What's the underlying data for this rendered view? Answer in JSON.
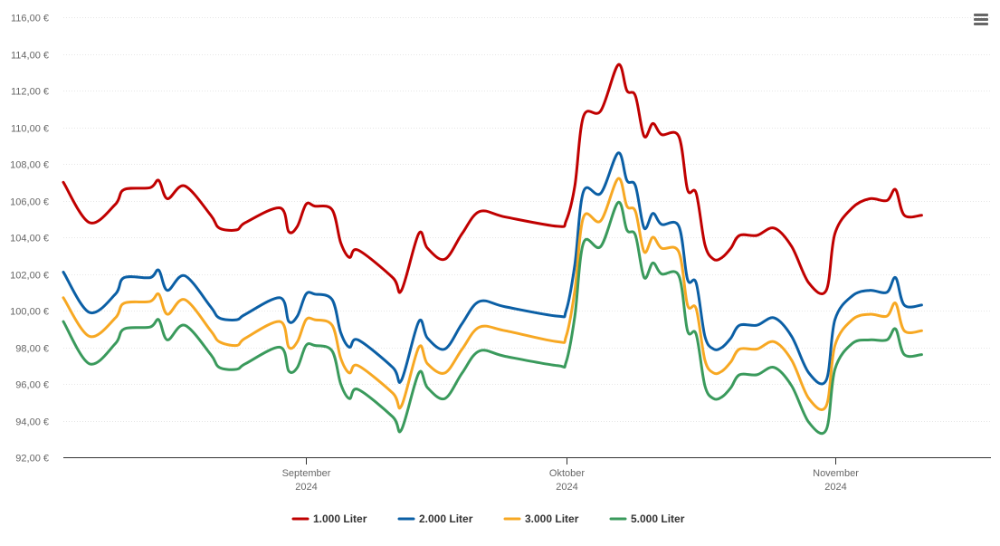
{
  "menu": {
    "icon": "hamburger-menu-icon"
  },
  "chart_data": {
    "type": "line",
    "title": "",
    "xlabel": "",
    "ylabel": "",
    "ylim": [
      92,
      116
    ],
    "ytick_labels": [
      "92,00 €",
      "94,00 €",
      "96,00 €",
      "98,00 €",
      "100,00 €",
      "102,00 €",
      "104,00 €",
      "106,00 €",
      "108,00 €",
      "110,00 €",
      "112,00 €",
      "114,00 €",
      "116,00 €"
    ],
    "xlim": [
      "2024-08-04",
      "2024-11-19"
    ],
    "xticks": [
      {
        "date": "2024-09-01",
        "label": "September",
        "year": "2024"
      },
      {
        "date": "2024-10-01",
        "label": "Oktober",
        "year": "2024"
      },
      {
        "date": "2024-11-01",
        "label": "November",
        "year": "2024"
      }
    ],
    "grid": "horizontal",
    "legend": "bottom-center",
    "series": [
      {
        "name": "1.000 Liter",
        "color": "#c00000",
        "points": [
          [
            "2024-08-04",
            107.0
          ],
          [
            "2024-08-07",
            104.8
          ],
          [
            "2024-08-10",
            105.8
          ],
          [
            "2024-08-11",
            106.6
          ],
          [
            "2024-08-14",
            106.7
          ],
          [
            "2024-08-15",
            107.1
          ],
          [
            "2024-08-16",
            106.1
          ],
          [
            "2024-08-18",
            106.8
          ],
          [
            "2024-08-21",
            105.2
          ],
          [
            "2024-08-22",
            104.5
          ],
          [
            "2024-08-24",
            104.4
          ],
          [
            "2024-08-25",
            104.8
          ],
          [
            "2024-08-29",
            105.6
          ],
          [
            "2024-08-30",
            104.3
          ],
          [
            "2024-08-31",
            104.6
          ],
          [
            "2024-09-01",
            105.8
          ],
          [
            "2024-09-02",
            105.7
          ],
          [
            "2024-09-04",
            105.5
          ],
          [
            "2024-09-05",
            103.7
          ],
          [
            "2024-09-06",
            102.9
          ],
          [
            "2024-09-07",
            103.3
          ],
          [
            "2024-09-11",
            101.8
          ],
          [
            "2024-09-12",
            101.1
          ],
          [
            "2024-09-14",
            104.2
          ],
          [
            "2024-09-15",
            103.4
          ],
          [
            "2024-09-17",
            102.8
          ],
          [
            "2024-09-19",
            104.2
          ],
          [
            "2024-09-21",
            105.4
          ],
          [
            "2024-09-24",
            105.1
          ],
          [
            "2024-09-30",
            104.6
          ],
          [
            "2024-10-01",
            104.9
          ],
          [
            "2024-10-02",
            106.8
          ],
          [
            "2024-10-03",
            110.6
          ],
          [
            "2024-10-05",
            110.9
          ],
          [
            "2024-10-07",
            113.4
          ],
          [
            "2024-10-08",
            112.0
          ],
          [
            "2024-10-09",
            111.7
          ],
          [
            "2024-10-10",
            109.5
          ],
          [
            "2024-10-11",
            110.2
          ],
          [
            "2024-10-12",
            109.6
          ],
          [
            "2024-10-14",
            109.5
          ],
          [
            "2024-10-15",
            106.6
          ],
          [
            "2024-10-16",
            106.4
          ],
          [
            "2024-10-17",
            103.6
          ],
          [
            "2024-10-18",
            102.8
          ],
          [
            "2024-10-19",
            102.9
          ],
          [
            "2024-10-20",
            103.4
          ],
          [
            "2024-10-21",
            104.1
          ],
          [
            "2024-10-23",
            104.1
          ],
          [
            "2024-10-25",
            104.5
          ],
          [
            "2024-10-27",
            103.5
          ],
          [
            "2024-10-29",
            101.5
          ],
          [
            "2024-10-31",
            101.1
          ],
          [
            "2024-11-01",
            104.2
          ],
          [
            "2024-11-03",
            105.6
          ],
          [
            "2024-11-05",
            106.1
          ],
          [
            "2024-11-07",
            106.0
          ],
          [
            "2024-11-08",
            106.6
          ],
          [
            "2024-11-09",
            105.2
          ],
          [
            "2024-11-11",
            105.2
          ]
        ]
      },
      {
        "name": "2.000 Liter",
        "color": "#0b5fa5",
        "points": [
          [
            "2024-08-04",
            102.1
          ],
          [
            "2024-08-07",
            99.9
          ],
          [
            "2024-08-10",
            100.9
          ],
          [
            "2024-08-11",
            101.8
          ],
          [
            "2024-08-14",
            101.8
          ],
          [
            "2024-08-15",
            102.2
          ],
          [
            "2024-08-16",
            101.1
          ],
          [
            "2024-08-18",
            101.9
          ],
          [
            "2024-08-21",
            100.2
          ],
          [
            "2024-08-22",
            99.6
          ],
          [
            "2024-08-24",
            99.5
          ],
          [
            "2024-08-25",
            99.8
          ],
          [
            "2024-08-29",
            100.7
          ],
          [
            "2024-08-30",
            99.4
          ],
          [
            "2024-08-31",
            99.7
          ],
          [
            "2024-09-01",
            100.9
          ],
          [
            "2024-09-02",
            100.9
          ],
          [
            "2024-09-04",
            100.6
          ],
          [
            "2024-09-05",
            98.8
          ],
          [
            "2024-09-06",
            98.0
          ],
          [
            "2024-09-07",
            98.4
          ],
          [
            "2024-09-11",
            96.9
          ],
          [
            "2024-09-12",
            96.2
          ],
          [
            "2024-09-14",
            99.4
          ],
          [
            "2024-09-15",
            98.5
          ],
          [
            "2024-09-17",
            97.9
          ],
          [
            "2024-09-19",
            99.3
          ],
          [
            "2024-09-21",
            100.5
          ],
          [
            "2024-09-24",
            100.2
          ],
          [
            "2024-09-30",
            99.7
          ],
          [
            "2024-10-01",
            100.0
          ],
          [
            "2024-10-02",
            102.5
          ],
          [
            "2024-10-03",
            106.5
          ],
          [
            "2024-10-05",
            106.4
          ],
          [
            "2024-10-07",
            108.6
          ],
          [
            "2024-10-08",
            107.1
          ],
          [
            "2024-10-09",
            106.8
          ],
          [
            "2024-10-10",
            104.5
          ],
          [
            "2024-10-11",
            105.3
          ],
          [
            "2024-10-12",
            104.7
          ],
          [
            "2024-10-14",
            104.6
          ],
          [
            "2024-10-15",
            101.7
          ],
          [
            "2024-10-16",
            101.5
          ],
          [
            "2024-10-17",
            98.6
          ],
          [
            "2024-10-18",
            97.9
          ],
          [
            "2024-10-19",
            98.0
          ],
          [
            "2024-10-20",
            98.5
          ],
          [
            "2024-10-21",
            99.2
          ],
          [
            "2024-10-23",
            99.2
          ],
          [
            "2024-10-25",
            99.6
          ],
          [
            "2024-10-27",
            98.6
          ],
          [
            "2024-10-29",
            96.6
          ],
          [
            "2024-10-31",
            96.2
          ],
          [
            "2024-11-01",
            99.5
          ],
          [
            "2024-11-03",
            100.8
          ],
          [
            "2024-11-05",
            101.1
          ],
          [
            "2024-11-07",
            101.0
          ],
          [
            "2024-11-08",
            101.8
          ],
          [
            "2024-11-09",
            100.3
          ],
          [
            "2024-11-11",
            100.3
          ]
        ]
      },
      {
        "name": "3.000 Liter",
        "color": "#f7a823",
        "points": [
          [
            "2024-08-04",
            100.7
          ],
          [
            "2024-08-07",
            98.6
          ],
          [
            "2024-08-10",
            99.6
          ],
          [
            "2024-08-11",
            100.4
          ],
          [
            "2024-08-14",
            100.5
          ],
          [
            "2024-08-15",
            100.9
          ],
          [
            "2024-08-16",
            99.8
          ],
          [
            "2024-08-18",
            100.6
          ],
          [
            "2024-08-21",
            98.9
          ],
          [
            "2024-08-22",
            98.3
          ],
          [
            "2024-08-24",
            98.1
          ],
          [
            "2024-08-25",
            98.5
          ],
          [
            "2024-08-29",
            99.4
          ],
          [
            "2024-08-30",
            98.0
          ],
          [
            "2024-08-31",
            98.3
          ],
          [
            "2024-09-01",
            99.5
          ],
          [
            "2024-09-02",
            99.5
          ],
          [
            "2024-09-04",
            99.2
          ],
          [
            "2024-09-05",
            97.4
          ],
          [
            "2024-09-06",
            96.6
          ],
          [
            "2024-09-07",
            97.0
          ],
          [
            "2024-09-11",
            95.5
          ],
          [
            "2024-09-12",
            94.8
          ],
          [
            "2024-09-14",
            98.0
          ],
          [
            "2024-09-15",
            97.1
          ],
          [
            "2024-09-17",
            96.6
          ],
          [
            "2024-09-19",
            97.9
          ],
          [
            "2024-09-21",
            99.1
          ],
          [
            "2024-09-24",
            98.9
          ],
          [
            "2024-09-30",
            98.3
          ],
          [
            "2024-10-01",
            98.6
          ],
          [
            "2024-10-02",
            101.1
          ],
          [
            "2024-10-03",
            105.1
          ],
          [
            "2024-10-05",
            104.9
          ],
          [
            "2024-10-07",
            107.2
          ],
          [
            "2024-10-08",
            105.7
          ],
          [
            "2024-10-09",
            105.4
          ],
          [
            "2024-10-10",
            103.2
          ],
          [
            "2024-10-11",
            104.0
          ],
          [
            "2024-10-12",
            103.4
          ],
          [
            "2024-10-14",
            103.2
          ],
          [
            "2024-10-15",
            100.3
          ],
          [
            "2024-10-16",
            100.1
          ],
          [
            "2024-10-17",
            97.3
          ],
          [
            "2024-10-18",
            96.6
          ],
          [
            "2024-10-19",
            96.7
          ],
          [
            "2024-10-20",
            97.2
          ],
          [
            "2024-10-21",
            97.9
          ],
          [
            "2024-10-23",
            97.9
          ],
          [
            "2024-10-25",
            98.3
          ],
          [
            "2024-10-27",
            97.3
          ],
          [
            "2024-10-29",
            95.2
          ],
          [
            "2024-10-31",
            94.8
          ],
          [
            "2024-11-01",
            98.1
          ],
          [
            "2024-11-03",
            99.5
          ],
          [
            "2024-11-05",
            99.8
          ],
          [
            "2024-11-07",
            99.7
          ],
          [
            "2024-11-08",
            100.4
          ],
          [
            "2024-11-09",
            98.9
          ],
          [
            "2024-11-11",
            98.9
          ]
        ]
      },
      {
        "name": "5.000 Liter",
        "color": "#3a9a5c",
        "points": [
          [
            "2024-08-04",
            99.4
          ],
          [
            "2024-08-07",
            97.1
          ],
          [
            "2024-08-10",
            98.2
          ],
          [
            "2024-08-11",
            99.0
          ],
          [
            "2024-08-14",
            99.1
          ],
          [
            "2024-08-15",
            99.5
          ],
          [
            "2024-08-16",
            98.4
          ],
          [
            "2024-08-18",
            99.2
          ],
          [
            "2024-08-21",
            97.6
          ],
          [
            "2024-08-22",
            96.9
          ],
          [
            "2024-08-24",
            96.8
          ],
          [
            "2024-08-25",
            97.1
          ],
          [
            "2024-08-29",
            98.0
          ],
          [
            "2024-08-30",
            96.7
          ],
          [
            "2024-08-31",
            96.9
          ],
          [
            "2024-09-01",
            98.1
          ],
          [
            "2024-09-02",
            98.1
          ],
          [
            "2024-09-04",
            97.8
          ],
          [
            "2024-09-05",
            96.0
          ],
          [
            "2024-09-06",
            95.2
          ],
          [
            "2024-09-07",
            95.7
          ],
          [
            "2024-09-11",
            94.2
          ],
          [
            "2024-09-12",
            93.5
          ],
          [
            "2024-09-14",
            96.6
          ],
          [
            "2024-09-15",
            95.8
          ],
          [
            "2024-09-17",
            95.2
          ],
          [
            "2024-09-19",
            96.6
          ],
          [
            "2024-09-21",
            97.8
          ],
          [
            "2024-09-24",
            97.5
          ],
          [
            "2024-09-30",
            97.0
          ],
          [
            "2024-10-01",
            97.2
          ],
          [
            "2024-10-02",
            99.7
          ],
          [
            "2024-10-03",
            103.7
          ],
          [
            "2024-10-05",
            103.5
          ],
          [
            "2024-10-07",
            105.9
          ],
          [
            "2024-10-08",
            104.4
          ],
          [
            "2024-10-09",
            104.1
          ],
          [
            "2024-10-10",
            101.8
          ],
          [
            "2024-10-11",
            102.6
          ],
          [
            "2024-10-12",
            102.0
          ],
          [
            "2024-10-14",
            101.9
          ],
          [
            "2024-10-15",
            98.9
          ],
          [
            "2024-10-16",
            98.7
          ],
          [
            "2024-10-17",
            95.9
          ],
          [
            "2024-10-18",
            95.2
          ],
          [
            "2024-10-19",
            95.3
          ],
          [
            "2024-10-20",
            95.8
          ],
          [
            "2024-10-21",
            96.5
          ],
          [
            "2024-10-23",
            96.5
          ],
          [
            "2024-10-25",
            96.9
          ],
          [
            "2024-10-27",
            95.9
          ],
          [
            "2024-10-29",
            93.9
          ],
          [
            "2024-10-31",
            93.5
          ],
          [
            "2024-11-01",
            96.8
          ],
          [
            "2024-11-03",
            98.2
          ],
          [
            "2024-11-05",
            98.4
          ],
          [
            "2024-11-07",
            98.4
          ],
          [
            "2024-11-08",
            99.0
          ],
          [
            "2024-11-09",
            97.6
          ],
          [
            "2024-11-11",
            97.6
          ]
        ]
      }
    ]
  }
}
